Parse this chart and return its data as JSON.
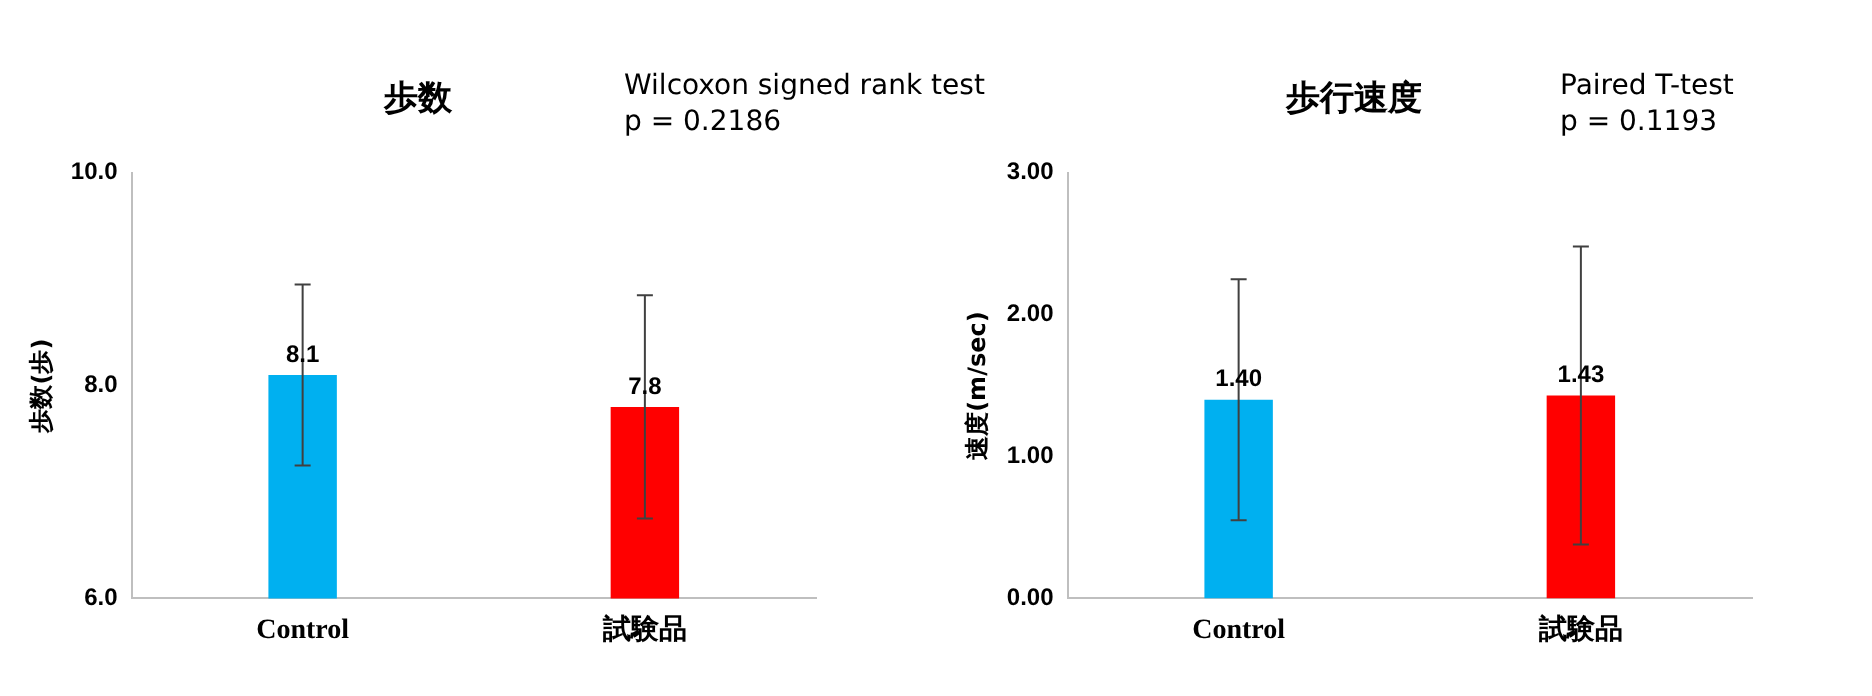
{
  "chart_data": [
    {
      "type": "bar",
      "title": "歩数",
      "ylabel": "歩数(歩)",
      "categories": [
        "Control",
        "試験品"
      ],
      "values": [
        8.1,
        7.8
      ],
      "colors": [
        "#00b0f0",
        "#ff0000"
      ],
      "errors": [
        0.85,
        1.05
      ],
      "data_labels": true,
      "ylim": [
        6,
        10
      ],
      "yticks": [
        {
          "value": 6,
          "label": "6.0"
        },
        {
          "value": 8,
          "label": "8.0"
        },
        {
          "value": 10,
          "label": "10.0"
        }
      ],
      "grid": false,
      "legend": false,
      "annotations": [
        "Wilcoxon signed rank test\np = 0.2186"
      ]
    },
    {
      "type": "bar",
      "title": "歩行速度",
      "ylabel": "速度(m/sec)",
      "categories": [
        "Control",
        "試験品"
      ],
      "values": [
        1.4,
        1.43
      ],
      "colors": [
        "#00b0f0",
        "#ff0000"
      ],
      "errors": [
        0.85,
        1.05
      ],
      "value_labels": [
        "1.40",
        "1.43"
      ],
      "ylim": [
        0,
        3
      ],
      "yticks": [
        {
          "value": 0,
          "label": "0.00"
        },
        {
          "value": 1,
          "label": "1.00"
        },
        {
          "value": 2,
          "label": "2.00"
        },
        {
          "value": 3,
          "label": "3.00"
        }
      ],
      "grid": false,
      "legend": false,
      "annotations": [
        "Paired T-test\np = 0.1193"
      ]
    }
  ]
}
